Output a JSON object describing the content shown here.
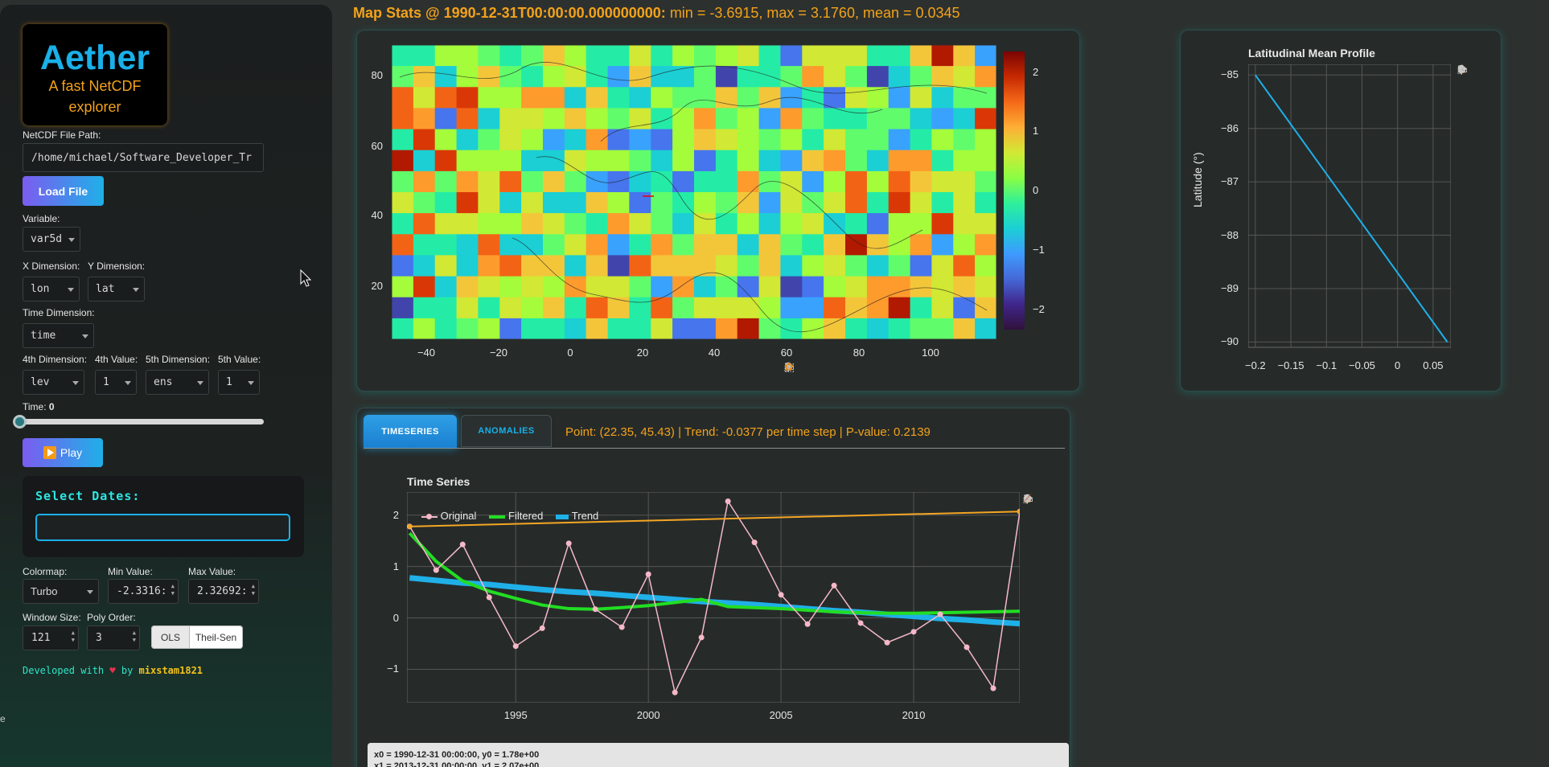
{
  "sidebar": {
    "logo_title": "Aether",
    "logo_subtitle_1": "A fast NetCDF",
    "logo_subtitle_2": "explorer",
    "file_path_label": "NetCDF File Path:",
    "file_path_value": "/home/michael/Software_Developer_Tr",
    "load_button": "Load File",
    "variable_label": "Variable:",
    "variable_value": "var5d",
    "x_dim_label": "X Dimension:",
    "x_dim_value": "lon",
    "y_dim_label": "Y Dimension:",
    "y_dim_value": "lat",
    "time_dim_label": "Time Dimension:",
    "time_dim_value": "time",
    "dim4_label": "4th Dimension:",
    "dim4_value": "lev",
    "val4_label": "4th Value:",
    "val4_value": "1",
    "dim5_label": "5th Dimension:",
    "dim5_value": "ens",
    "val5_label": "5th Value:",
    "val5_value": "1",
    "time_label": "Time:",
    "time_value": "0",
    "time_slider_fraction": 0,
    "play_button": "Play",
    "select_dates_title": "Select Dates:",
    "select_dates_value": "",
    "colormap_label": "Colormap:",
    "colormap_value": "Turbo",
    "min_label": "Min Value:",
    "min_value": "-2.3316:",
    "max_label": "Max Value:",
    "max_value": "2.32692:",
    "window_label": "Window Size:",
    "window_value": "121",
    "poly_label": "Poly Order:",
    "poly_value": "3",
    "method_options": [
      "OLS",
      "Theil-Sen"
    ],
    "footer_prefix": "Developed with",
    "footer_by": "by",
    "footer_author": "mixstam1821"
  },
  "header": {
    "stats_label": "Map Stats @ 1990-12-31T00:00:00.000000000:",
    "stats_values": "min = -3.6915, max = 3.1760, mean = 0.0345"
  },
  "map": {
    "y_ticks": [
      "80",
      "60",
      "40",
      "20"
    ],
    "x_ticks": [
      "−40",
      "−20",
      "0",
      "20",
      "40",
      "60",
      "80",
      "100"
    ],
    "colorbar_ticks": [
      "2",
      "1",
      "0",
      "−1",
      "−2"
    ]
  },
  "profile": {
    "title": "Latitudinal Mean Profile",
    "ylabel": "Latitude (°)",
    "y_ticks": [
      "−85",
      "−86",
      "−87",
      "−88",
      "−89",
      "−90"
    ],
    "x_ticks": [
      "−0.2",
      "−0.15",
      "−0.1",
      "−0.05",
      "0",
      "0.05"
    ]
  },
  "tabs": {
    "items": [
      "TIMESERIES",
      "ANOMALIES"
    ],
    "active": "TIMESERIES",
    "info": "Point: (22.35, 45.43) | Trend: -0.0377 per time step | P-value: 0.2139"
  },
  "timeseries": {
    "title": "Time Series",
    "legend": [
      "Original",
      "Filtered",
      "Trend"
    ],
    "hover_line1": "x0 = 1990-12-31 00:00:00, y0 = 1.78e+00",
    "hover_line2": "x1 = 2013-12-31 00:00:00, y1 = 2.07e+00"
  },
  "colors": {
    "accent_orange": "#f3a21a",
    "accent_blue": "#1ab0e8",
    "original": "#f5b8c8",
    "filtered": "#22dd22",
    "trend": "#1fb0e8",
    "annotation": "#f5a623"
  },
  "chart_data": [
    {
      "type": "line",
      "title": "Time Series",
      "xlabel": "",
      "ylabel": "",
      "x_ticks": [
        "1995",
        "2000",
        "2005",
        "2010"
      ],
      "y_ticks": [
        "2",
        "1",
        "0",
        "−1"
      ],
      "ylim": [
        -1.65,
        2.45
      ],
      "xlim": [
        1990.9,
        2014.0
      ],
      "x": [
        1991,
        1992,
        1993,
        1994,
        1995,
        1996,
        1997,
        1998,
        1999,
        2000,
        2001,
        2002,
        2003,
        2004,
        2005,
        2006,
        2007,
        2008,
        2009,
        2010,
        2011,
        2012,
        2013,
        2014
      ],
      "series": [
        {
          "name": "Original",
          "values": [
            1.78,
            0.93,
            1.43,
            0.4,
            -0.55,
            -0.2,
            1.45,
            0.17,
            -0.18,
            0.85,
            -1.45,
            -0.38,
            2.27,
            1.47,
            0.45,
            -0.12,
            0.63,
            -0.1,
            -0.48,
            -0.27,
            0.07,
            -0.57,
            -1.37,
            2.07
          ]
        },
        {
          "name": "Filtered",
          "values": [
            1.65,
            1.1,
            0.72,
            0.52,
            0.38,
            0.25,
            0.18,
            0.17,
            0.2,
            0.24,
            0.3,
            0.36,
            0.22,
            0.2,
            0.18,
            0.15,
            0.12,
            0.1,
            0.09,
            0.09,
            0.1,
            0.11,
            0.12,
            0.13
          ]
        },
        {
          "name": "Trend",
          "values": [
            0.78,
            0.73,
            0.68,
            0.65,
            0.6,
            0.55,
            0.51,
            0.48,
            0.44,
            0.4,
            0.36,
            0.32,
            0.29,
            0.26,
            0.22,
            0.18,
            0.14,
            0.11,
            0.07,
            0.03,
            -0.01,
            -0.04,
            -0.08,
            -0.11
          ]
        },
        {
          "name": "",
          "values": [
            1.78,
            null,
            null,
            null,
            null,
            null,
            null,
            null,
            null,
            null,
            null,
            null,
            null,
            null,
            null,
            null,
            null,
            null,
            null,
            null,
            null,
            null,
            null,
            2.07
          ]
        }
      ]
    },
    {
      "type": "line",
      "title": "Latitudinal Mean Profile",
      "xlabel": "",
      "ylabel": "Latitude (°)",
      "xlim": [
        -0.21,
        0.075
      ],
      "ylim": [
        -90.1,
        -84.8
      ],
      "series": [
        {
          "name": "",
          "x": [
            -0.2,
            0.07
          ],
          "y": [
            -85,
            -90
          ]
        }
      ]
    }
  ]
}
